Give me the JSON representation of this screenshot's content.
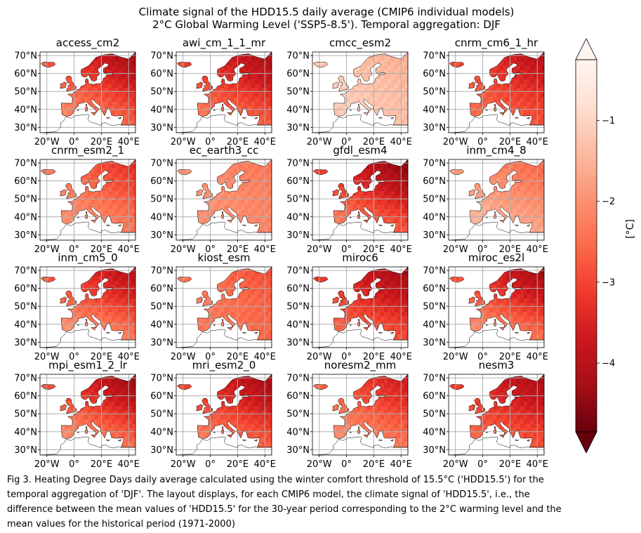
{
  "title": {
    "line1": "Climate signal of the HDD15.5 daily average (CMIP6 individual models)",
    "line2": "2°C Global Warming Level ('SSP5-8.5'). Temporal aggregation: DJF"
  },
  "caption": {
    "line1": "Fig 3. Heating Degree Days daily average calculated using the winter comfort threshold of 15.5°C ('HDD15.5') for the",
    "line2": "temporal aggregation of 'DJF'. The layout displays, for each CMIP6 model,  the climate signal of 'HDD15.5', i.e., the",
    "line3": "difference between the mean values of 'HDD15.5' for the 30-year period corresponding to the 2°C warming level and the",
    "line4": "mean values for the historical period (1971-2000)"
  },
  "colors": {
    "grid": "#b0b0b0",
    "coast": "#000000",
    "sea": "#ffffff",
    "cmap": [
      "#67000d",
      "#a50f15",
      "#cb181d",
      "#ef3b2c",
      "#fb6a4a",
      "#fc9272",
      "#fcbba1",
      "#fee0d2",
      "#fff5f0"
    ]
  },
  "chart_data": {
    "type": "heatmap",
    "map_extent": {
      "lon": [
        -25,
        45
      ],
      "lat": [
        27,
        72
      ]
    },
    "lon_ticks": [
      "20°W",
      "0°",
      "20°E",
      "40°E"
    ],
    "lat_ticks": [
      "30°N",
      "40°N",
      "50°N",
      "60°N",
      "70°N"
    ],
    "colorbar": {
      "label": "[°C]",
      "ticks": [
        "−1",
        "−2",
        "−3",
        "−4"
      ],
      "tick_values": [
        -1,
        -2,
        -3,
        -4
      ],
      "vmin": -4.85,
      "vmax": -0.25,
      "extend": "both"
    },
    "panels": [
      {
        "name": "access_cm2",
        "ne": -4.3,
        "south": -2.5,
        "west": -1.8
      },
      {
        "name": "awi_cm_1_1_mr",
        "ne": -4.2,
        "south": -2.4,
        "west": -2.2
      },
      {
        "name": "cmcc_esm2",
        "ne": -1.6,
        "south": -1.5,
        "west": -0.9
      },
      {
        "name": "cnrm_cm6_1_hr",
        "ne": -4.0,
        "south": -2.8,
        "west": -2.2
      },
      {
        "name": "cnrm_esm2_1",
        "ne": -3.3,
        "south": -2.3,
        "west": -1.7
      },
      {
        "name": "ec_earth3_cc",
        "ne": -2.4,
        "south": -2.4,
        "west": -1.7
      },
      {
        "name": "gfdl_esm4",
        "ne": -4.6,
        "south": -2.5,
        "west": -2.0
      },
      {
        "name": "inm_cm4_8",
        "ne": -2.6,
        "south": -1.6,
        "west": -1.3
      },
      {
        "name": "inm_cm5_0",
        "ne": -4.0,
        "south": -1.8,
        "west": -1.9
      },
      {
        "name": "kiost_esm",
        "ne": -2.9,
        "south": -2.8,
        "west": -2.0
      },
      {
        "name": "miroc6",
        "ne": -4.3,
        "south": -2.6,
        "west": -2.4
      },
      {
        "name": "miroc_es2l",
        "ne": -4.3,
        "south": -2.0,
        "west": -1.9
      },
      {
        "name": "mpi_esm1_2_lr",
        "ne": -4.4,
        "south": -2.1,
        "west": -1.8
      },
      {
        "name": "mri_esm2_0",
        "ne": -4.3,
        "south": -2.4,
        "west": -2.1
      },
      {
        "name": "noresm2_mm",
        "ne": -3.7,
        "south": -2.2,
        "west": -1.8
      },
      {
        "name": "nesm3",
        "ne": -4.2,
        "south": -2.6,
        "west": -2.4
      }
    ]
  }
}
